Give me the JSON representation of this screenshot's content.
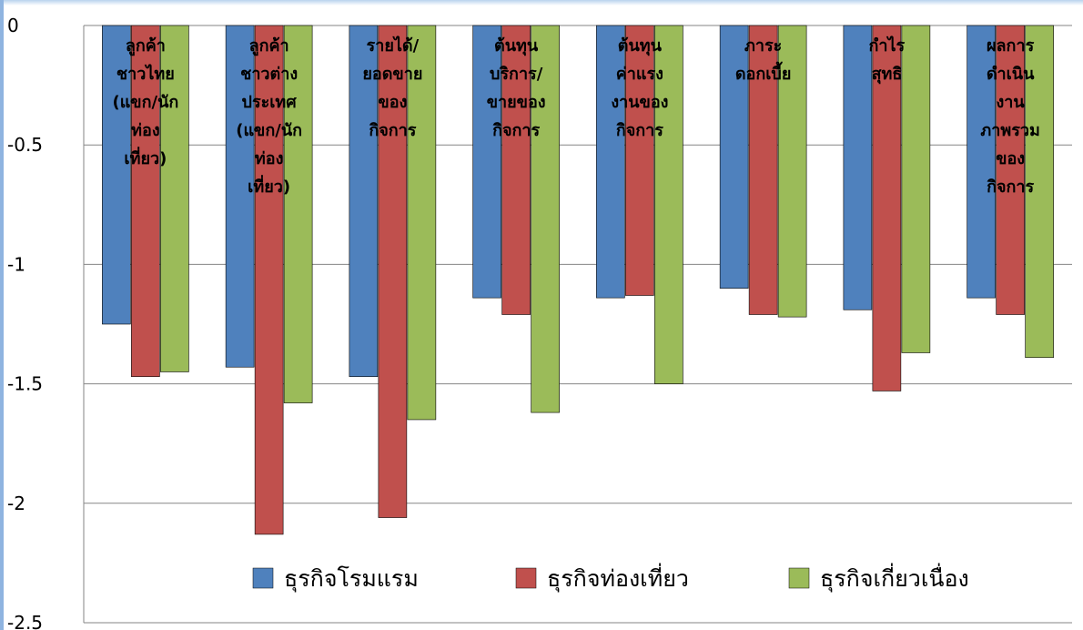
{
  "chart_data": {
    "type": "bar",
    "title": "",
    "xlabel": "",
    "ylabel": "",
    "ylim": [
      -2.5,
      0
    ],
    "yticks": [
      0,
      -0.5,
      -1,
      -1.5,
      -2,
      -2.5
    ],
    "ytick_labels": [
      "0",
      "-0.5",
      "-1",
      "-1.5",
      "-2",
      "-2.5"
    ],
    "grid": "horizontal",
    "legend_position": "bottom-right",
    "x_axis_position": "top",
    "categories": [
      [
        "ลูกค้า",
        "ชาวไทย",
        "(แขก/นัก",
        "ท่อง",
        "เที่ยว)"
      ],
      [
        "ลูกค้า",
        "ชาวต่าง",
        "ประเทศ",
        "(แขก/นัก",
        "ท่อง",
        "เที่ยว)"
      ],
      [
        "รายได้/",
        "ยอดขาย",
        "ของ",
        "กิจการ"
      ],
      [
        "ต้นทุน",
        "บริการ/",
        "ขายของ",
        "กิจการ"
      ],
      [
        "ต้นทุน",
        "ค่าแรง",
        "งานของ",
        "กิจการ"
      ],
      [
        "ภาระ",
        "ดอกเบี้ย"
      ],
      [
        "กำไร",
        "สุทธิ"
      ],
      [
        "ผลการ",
        "ดำเนิน",
        "งาน",
        "ภาพรวม",
        "ของ",
        "กิจการ"
      ]
    ],
    "series": [
      {
        "name": "ธุรกิจโรมแรม",
        "color": "#4f81bd",
        "values": [
          -1.25,
          -1.43,
          -1.47,
          -1.14,
          -1.14,
          -1.1,
          -1.19,
          -1.14
        ]
      },
      {
        "name": "ธุรกิจท่องเที่ยว",
        "color": "#c0504d",
        "values": [
          -1.47,
          -2.13,
          -2.06,
          -1.21,
          -1.13,
          -1.21,
          -1.53,
          -1.21
        ]
      },
      {
        "name": "ธุรกิจเกี่ยวเนื่อง",
        "color": "#9bbb59",
        "values": [
          -1.45,
          -1.58,
          -1.65,
          -1.62,
          -1.5,
          -1.22,
          -1.37,
          -1.39
        ]
      }
    ]
  }
}
